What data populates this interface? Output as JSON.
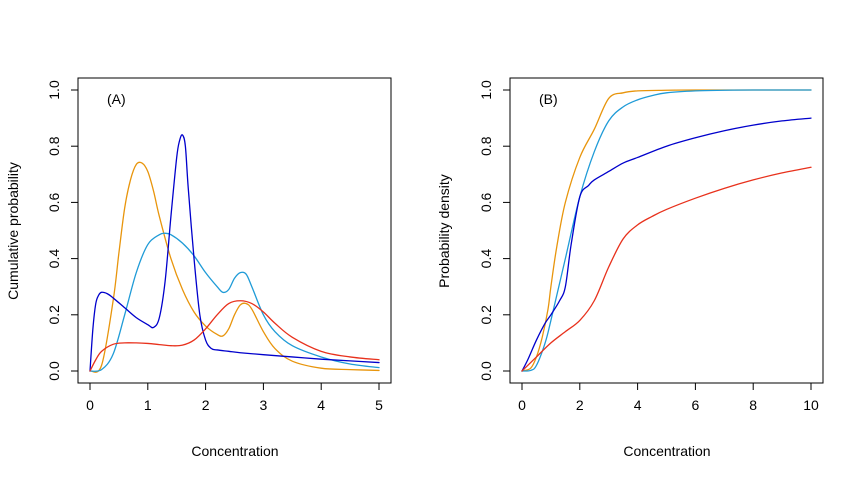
{
  "chart_data": [
    {
      "type": "line",
      "annotation": "(A)",
      "xlabel": "Concentration",
      "ylabel": "Cumulative probability",
      "xlim": [
        0,
        5
      ],
      "ylim": [
        0,
        1
      ],
      "xticks": [
        0,
        1,
        2,
        3,
        4,
        5
      ],
      "yticks": [
        0.0,
        0.2,
        0.4,
        0.6,
        0.8,
        1.0
      ],
      "xtick_labels": [
        "0",
        "1",
        "2",
        "3",
        "4",
        "5"
      ],
      "ytick_labels": [
        "0.0",
        "0.2",
        "0.4",
        "0.6",
        "0.8",
        "1.0"
      ],
      "grid": false,
      "legend": "none",
      "series": [
        {
          "color": "#E8950C",
          "x": [
            0,
            0.2,
            0.4,
            0.5,
            0.6,
            0.7,
            0.8,
            0.9,
            1.0,
            1.1,
            1.2,
            1.4,
            1.6,
            1.8,
            2.0,
            2.2,
            2.3,
            2.4,
            2.5,
            2.6,
            2.7,
            2.8,
            3.0,
            3.2,
            3.5,
            4.0,
            4.5,
            5.0
          ],
          "y": [
            0,
            0.02,
            0.25,
            0.42,
            0.58,
            0.68,
            0.735,
            0.74,
            0.71,
            0.64,
            0.55,
            0.4,
            0.29,
            0.21,
            0.16,
            0.13,
            0.125,
            0.15,
            0.2,
            0.235,
            0.24,
            0.22,
            0.14,
            0.08,
            0.035,
            0.01,
            0.005,
            0.002
          ]
        },
        {
          "color": "#1F9BD7",
          "x": [
            0,
            0.2,
            0.4,
            0.6,
            0.8,
            1.0,
            1.2,
            1.3,
            1.4,
            1.6,
            1.8,
            2.0,
            2.2,
            2.3,
            2.4,
            2.5,
            2.6,
            2.7,
            2.8,
            3.0,
            3.2,
            3.5,
            4.0,
            4.5,
            5.0
          ],
          "y": [
            0,
            0.005,
            0.06,
            0.2,
            0.35,
            0.45,
            0.485,
            0.49,
            0.485,
            0.455,
            0.41,
            0.35,
            0.3,
            0.28,
            0.29,
            0.33,
            0.35,
            0.345,
            0.3,
            0.2,
            0.14,
            0.09,
            0.05,
            0.025,
            0.012
          ]
        },
        {
          "color": "#0000CC",
          "x": [
            0,
            0.05,
            0.1,
            0.15,
            0.2,
            0.3,
            0.4,
            0.6,
            0.8,
            1.0,
            1.1,
            1.2,
            1.3,
            1.4,
            1.5,
            1.55,
            1.6,
            1.65,
            1.7,
            1.8,
            1.9,
            2.0,
            2.1,
            2.2,
            2.4,
            2.6,
            3.0,
            3.5,
            4.0,
            4.5,
            5.0
          ],
          "y": [
            0,
            0.15,
            0.24,
            0.27,
            0.28,
            0.275,
            0.26,
            0.225,
            0.19,
            0.165,
            0.155,
            0.19,
            0.32,
            0.55,
            0.76,
            0.82,
            0.84,
            0.8,
            0.65,
            0.4,
            0.2,
            0.11,
            0.08,
            0.075,
            0.07,
            0.065,
            0.058,
            0.05,
            0.042,
            0.036,
            0.03
          ]
        },
        {
          "color": "#E8311C",
          "x": [
            0,
            0.1,
            0.2,
            0.4,
            0.6,
            0.8,
            1.0,
            1.2,
            1.4,
            1.6,
            1.8,
            2.0,
            2.2,
            2.4,
            2.6,
            2.8,
            3.0,
            3.2,
            3.5,
            4.0,
            4.5,
            5.0
          ],
          "y": [
            0,
            0.04,
            0.07,
            0.095,
            0.1,
            0.1,
            0.098,
            0.094,
            0.09,
            0.092,
            0.11,
            0.15,
            0.2,
            0.24,
            0.25,
            0.24,
            0.21,
            0.17,
            0.12,
            0.07,
            0.05,
            0.04
          ]
        }
      ]
    },
    {
      "type": "line",
      "annotation": "(B)",
      "xlabel": "Concentration",
      "ylabel": "Probability density",
      "xlim": [
        0,
        10
      ],
      "ylim": [
        0,
        1
      ],
      "xticks": [
        0,
        2,
        4,
        6,
        8,
        10
      ],
      "yticks": [
        0.0,
        0.2,
        0.4,
        0.6,
        0.8,
        1.0
      ],
      "xtick_labels": [
        "0",
        "2",
        "4",
        "6",
        "8",
        "10"
      ],
      "ytick_labels": [
        "0.0",
        "0.2",
        "0.4",
        "0.6",
        "0.8",
        "1.0"
      ],
      "grid": false,
      "legend": "none",
      "series": [
        {
          "color": "#E8950C",
          "x": [
            0,
            0.3,
            0.5,
            0.7,
            0.9,
            1.0,
            1.2,
            1.5,
            2.0,
            2.5,
            3.0,
            3.5,
            4.0,
            5.0,
            6.0,
            8.0,
            10.0
          ],
          "y": [
            0,
            0.01,
            0.05,
            0.12,
            0.22,
            0.3,
            0.44,
            0.6,
            0.76,
            0.86,
            0.97,
            0.99,
            0.997,
            0.999,
            1.0,
            1.0,
            1.0
          ]
        },
        {
          "color": "#1F9BD7",
          "x": [
            0,
            0.3,
            0.5,
            0.8,
            1.0,
            1.5,
            2.0,
            2.5,
            3.0,
            3.5,
            4.0,
            4.5,
            5.0,
            6.0,
            7.0,
            8.0,
            10.0
          ],
          "y": [
            0,
            0.002,
            0.02,
            0.1,
            0.18,
            0.4,
            0.62,
            0.78,
            0.89,
            0.94,
            0.965,
            0.98,
            0.99,
            0.997,
            0.999,
            1.0,
            1.0
          ]
        },
        {
          "color": "#0000CC",
          "x": [
            0,
            0.2,
            0.5,
            0.8,
            1.0,
            1.3,
            1.5,
            1.7,
            2.0,
            2.3,
            2.5,
            3.0,
            3.5,
            4.0,
            5.0,
            6.0,
            7.0,
            8.0,
            9.0,
            10.0
          ],
          "y": [
            0,
            0.04,
            0.11,
            0.17,
            0.2,
            0.25,
            0.3,
            0.45,
            0.62,
            0.66,
            0.68,
            0.71,
            0.74,
            0.76,
            0.8,
            0.83,
            0.855,
            0.875,
            0.89,
            0.9
          ]
        },
        {
          "color": "#E8311C",
          "x": [
            0,
            0.3,
            0.5,
            1.0,
            1.5,
            2.0,
            2.5,
            3.0,
            3.5,
            4.0,
            4.5,
            5.0,
            6.0,
            7.0,
            8.0,
            9.0,
            10.0
          ],
          "y": [
            0,
            0.03,
            0.05,
            0.1,
            0.14,
            0.18,
            0.25,
            0.37,
            0.47,
            0.52,
            0.55,
            0.575,
            0.615,
            0.65,
            0.68,
            0.705,
            0.725
          ]
        }
      ]
    }
  ]
}
